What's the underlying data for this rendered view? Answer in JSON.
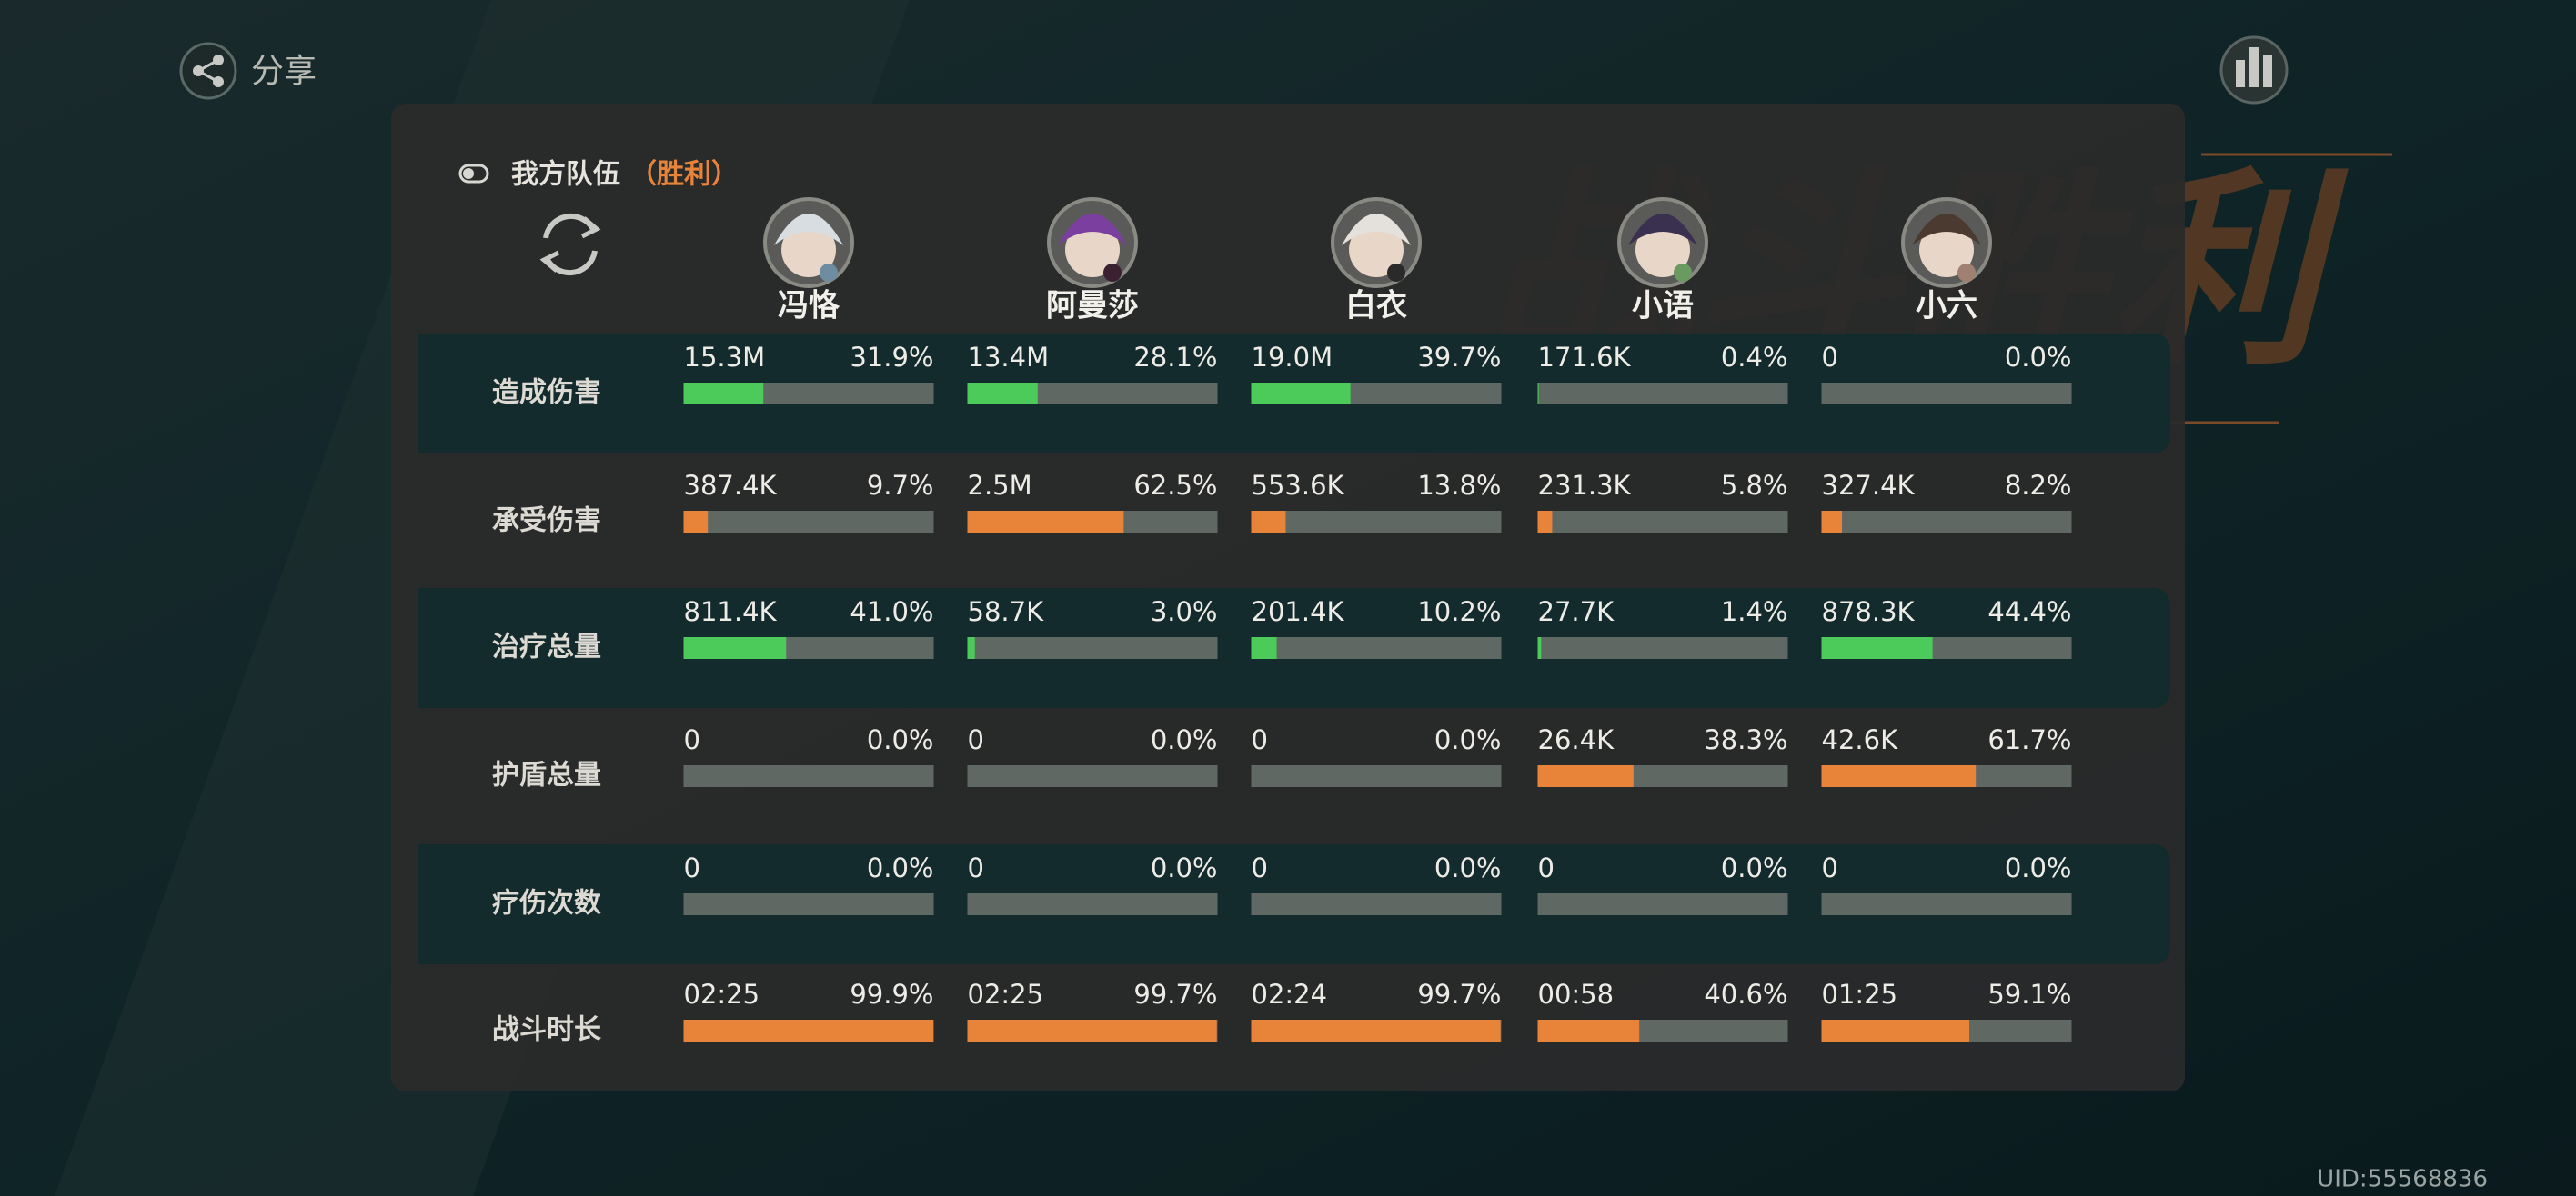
{
  "header": {
    "share": "分享"
  },
  "background_title": "战斗胜利",
  "panel": {
    "team": "我方队伍",
    "result": "（胜利）"
  },
  "members": [
    "冯恪",
    "阿曼莎",
    "白衣",
    "小语",
    "小六"
  ],
  "rows": [
    {
      "label": "造成伤害",
      "color": "#4ccb5a",
      "cells": [
        {
          "amount": "15.3M",
          "share": {
            "value": 31.9,
            "label": "31.9%"
          }
        },
        {
          "amount": "13.4M",
          "share": {
            "value": 28.1,
            "label": "28.1%"
          }
        },
        {
          "amount": "19.0M",
          "share": {
            "value": 39.7,
            "label": "39.7%"
          }
        },
        {
          "amount": "171.6K",
          "share": {
            "value": 0.4,
            "label": "0.4%"
          }
        },
        {
          "amount": "0",
          "share": {
            "value": 0.0,
            "label": "0.0%"
          }
        }
      ]
    },
    {
      "label": "承受伤害",
      "color": "#e8843a",
      "cells": [
        {
          "amount": "387.4K",
          "share": {
            "value": 9.7,
            "label": "9.7%"
          }
        },
        {
          "amount": "2.5M",
          "share": {
            "value": 62.5,
            "label": "62.5%"
          }
        },
        {
          "amount": "553.6K",
          "share": {
            "value": 13.8,
            "label": "13.8%"
          }
        },
        {
          "amount": "231.3K",
          "share": {
            "value": 5.8,
            "label": "5.8%"
          }
        },
        {
          "amount": "327.4K",
          "share": {
            "value": 8.2,
            "label": "8.2%"
          }
        }
      ]
    },
    {
      "label": "治疗总量",
      "color": "#4ccb5a",
      "cells": [
        {
          "amount": "811.4K",
          "share": {
            "value": 41.0,
            "label": "41.0%"
          }
        },
        {
          "amount": "58.7K",
          "share": {
            "value": 3.0,
            "label": "3.0%"
          }
        },
        {
          "amount": "201.4K",
          "share": {
            "value": 10.2,
            "label": "10.2%"
          }
        },
        {
          "amount": "27.7K",
          "share": {
            "value": 1.4,
            "label": "1.4%"
          }
        },
        {
          "amount": "878.3K",
          "share": {
            "value": 44.4,
            "label": "44.4%"
          }
        }
      ]
    },
    {
      "label": "护盾总量",
      "color": "#e8843a",
      "cells": [
        {
          "amount": "0",
          "share": {
            "value": 0.0,
            "label": "0.0%"
          }
        },
        {
          "amount": "0",
          "share": {
            "value": 0.0,
            "label": "0.0%"
          }
        },
        {
          "amount": "0",
          "share": {
            "value": 0.0,
            "label": "0.0%"
          }
        },
        {
          "amount": "26.4K",
          "share": {
            "value": 38.3,
            "label": "38.3%"
          }
        },
        {
          "amount": "42.6K",
          "share": {
            "value": 61.7,
            "label": "61.7%"
          }
        }
      ]
    },
    {
      "label": "疗伤次数",
      "color": "#4ccb5a",
      "cells": [
        {
          "amount": "0",
          "share": {
            "value": 0.0,
            "label": "0.0%"
          }
        },
        {
          "amount": "0",
          "share": {
            "value": 0.0,
            "label": "0.0%"
          }
        },
        {
          "amount": "0",
          "share": {
            "value": 0.0,
            "label": "0.0%"
          }
        },
        {
          "amount": "0",
          "share": {
            "value": 0.0,
            "label": "0.0%"
          }
        },
        {
          "amount": "0",
          "share": {
            "value": 0.0,
            "label": "0.0%"
          }
        }
      ]
    },
    {
      "label": "战斗时长",
      "color": "#e8843a",
      "cells": [
        {
          "amount": "02:25",
          "share": {
            "value": 99.9,
            "label": "99.9%"
          }
        },
        {
          "amount": "02:25",
          "share": {
            "value": 99.7,
            "label": "99.7%"
          }
        },
        {
          "amount": "02:24",
          "share": {
            "value": 99.7,
            "label": "99.7%"
          }
        },
        {
          "amount": "00:58",
          "share": {
            "value": 40.6,
            "label": "40.6%"
          }
        },
        {
          "amount": "01:25",
          "share": {
            "value": 59.1,
            "label": "59.1%"
          }
        }
      ]
    }
  ],
  "uid": "UID:55568836"
}
